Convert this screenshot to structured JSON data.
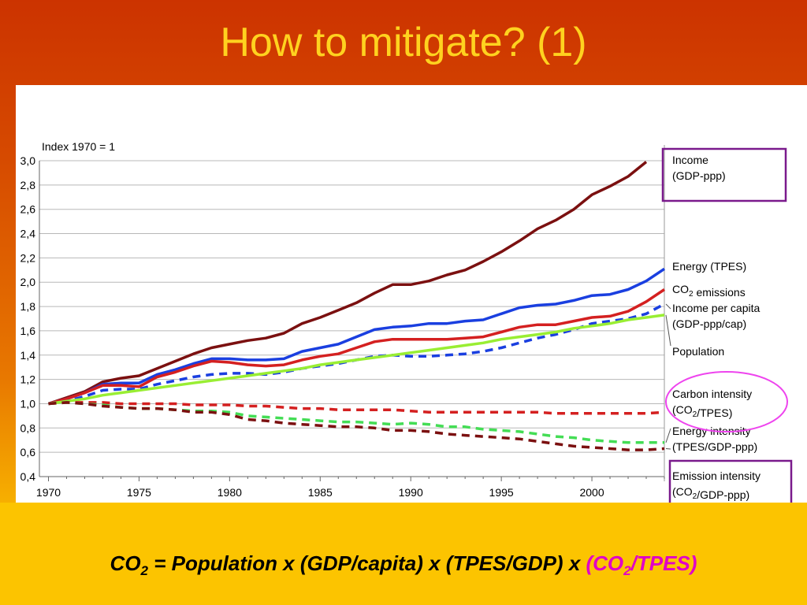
{
  "slide": {
    "title": "How to mitigate? (1)",
    "formula": {
      "co": "CO",
      "sub1": "2",
      "mid": " = Population x (GDP/capita) x (TPES/GDP) x ",
      "hl_open": "(CO",
      "sub2": "2",
      "hl_close": "/TPES)",
      "highlight_color": "#e000c8"
    }
  },
  "chart_data": {
    "type": "line",
    "title": "",
    "ylabel": "Index 1970 = 1",
    "xlabel": "",
    "xlim": [
      1969.5,
      2004
    ],
    "ylim": [
      0.4,
      3.0
    ],
    "x_ticks": [
      "1970",
      "1975",
      "1980",
      "1985",
      "1990",
      "1995",
      "2000"
    ],
    "y_ticks": [
      "3,0",
      "2,8",
      "2,6",
      "2,4",
      "2,2",
      "2,0",
      "1,8",
      "1,6",
      "1,4",
      "1,2",
      "1,0",
      "0,8",
      "0,6",
      "0,4"
    ],
    "grid": true,
    "x": [
      1970,
      1971,
      1972,
      1973,
      1974,
      1975,
      1976,
      1977,
      1978,
      1979,
      1980,
      1981,
      1982,
      1983,
      1984,
      1985,
      1986,
      1987,
      1988,
      1989,
      1990,
      1991,
      1992,
      1993,
      1994,
      1995,
      1996,
      1997,
      1998,
      1999,
      2000,
      2001,
      2002,
      2003,
      2004
    ],
    "series": [
      {
        "name": "Income (GDP-ppp)",
        "label_lines": [
          "Income",
          "(GDP-ppp)"
        ],
        "color": "#7b1010",
        "dash": false,
        "values": [
          1.0,
          1.05,
          1.1,
          1.18,
          1.21,
          1.23,
          1.29,
          1.35,
          1.41,
          1.46,
          1.49,
          1.52,
          1.54,
          1.58,
          1.66,
          1.71,
          1.77,
          1.83,
          1.91,
          1.98,
          1.98,
          2.01,
          2.06,
          2.1,
          2.17,
          2.25,
          2.34,
          2.44,
          2.51,
          2.6,
          2.72,
          2.79,
          2.87,
          2.99,
          null
        ]
      },
      {
        "name": "Energy (TPES)",
        "label_lines": [
          "Energy (TPES)"
        ],
        "color": "#1a3fe0",
        "dash": false,
        "values": [
          1.0,
          1.04,
          1.09,
          1.16,
          1.17,
          1.17,
          1.24,
          1.28,
          1.33,
          1.37,
          1.37,
          1.36,
          1.36,
          1.37,
          1.43,
          1.46,
          1.49,
          1.55,
          1.61,
          1.63,
          1.64,
          1.66,
          1.66,
          1.68,
          1.69,
          1.74,
          1.79,
          1.81,
          1.82,
          1.85,
          1.89,
          1.9,
          1.94,
          2.01,
          2.11
        ]
      },
      {
        "name": "CO2 emissions",
        "label_lines": [
          "CO2 emissions"
        ],
        "color": "#d42020",
        "dash": false,
        "values": [
          1.0,
          1.04,
          1.09,
          1.15,
          1.15,
          1.14,
          1.22,
          1.26,
          1.31,
          1.35,
          1.34,
          1.32,
          1.31,
          1.32,
          1.36,
          1.39,
          1.41,
          1.46,
          1.51,
          1.53,
          1.53,
          1.53,
          1.53,
          1.54,
          1.55,
          1.59,
          1.63,
          1.65,
          1.65,
          1.68,
          1.71,
          1.72,
          1.76,
          1.84,
          1.94
        ]
      },
      {
        "name": "Income per capita (GDP-ppp/cap)",
        "label_lines": [
          "Income per capita",
          "(GDP-ppp/cap)"
        ],
        "color": "#1a3fe0",
        "dash": true,
        "values": [
          1.0,
          1.02,
          1.06,
          1.11,
          1.12,
          1.12,
          1.16,
          1.19,
          1.22,
          1.24,
          1.25,
          1.25,
          1.24,
          1.26,
          1.29,
          1.31,
          1.33,
          1.36,
          1.39,
          1.4,
          1.39,
          1.39,
          1.4,
          1.41,
          1.43,
          1.46,
          1.5,
          1.54,
          1.57,
          1.61,
          1.66,
          1.68,
          1.7,
          1.74,
          1.82
        ]
      },
      {
        "name": "Population",
        "label_lines": [
          "Population"
        ],
        "color": "#99ee33",
        "dash": false,
        "values": [
          1.0,
          1.02,
          1.04,
          1.07,
          1.09,
          1.11,
          1.13,
          1.15,
          1.17,
          1.19,
          1.21,
          1.23,
          1.25,
          1.27,
          1.29,
          1.32,
          1.34,
          1.36,
          1.38,
          1.4,
          1.42,
          1.44,
          1.46,
          1.48,
          1.5,
          1.53,
          1.55,
          1.57,
          1.59,
          1.62,
          1.64,
          1.66,
          1.69,
          1.71,
          1.73
        ]
      },
      {
        "name": "Carbon intensity (CO2/TPES)",
        "label_lines": [
          "Carbon intensity",
          "(CO2/TPES)"
        ],
        "color": "#d42020",
        "dash": true,
        "values": [
          1.0,
          1.01,
          1.01,
          1.01,
          1.0,
          1.0,
          1.0,
          1.0,
          0.99,
          0.99,
          0.99,
          0.98,
          0.98,
          0.97,
          0.96,
          0.96,
          0.95,
          0.95,
          0.95,
          0.95,
          0.94,
          0.93,
          0.93,
          0.93,
          0.93,
          0.93,
          0.93,
          0.93,
          0.92,
          0.92,
          0.92,
          0.92,
          0.92,
          0.92,
          0.93
        ]
      },
      {
        "name": "Energy intensity (TPES/GDP-ppp)",
        "label_lines": [
          "Energy intensity",
          "(TPES/GDP-ppp)"
        ],
        "color": "#44dd55",
        "dash": true,
        "values": [
          1.0,
          1.01,
          1.0,
          0.99,
          0.97,
          0.96,
          0.96,
          0.95,
          0.94,
          0.94,
          0.93,
          0.9,
          0.89,
          0.88,
          0.87,
          0.86,
          0.85,
          0.85,
          0.84,
          0.83,
          0.84,
          0.83,
          0.81,
          0.81,
          0.79,
          0.78,
          0.77,
          0.75,
          0.73,
          0.72,
          0.7,
          0.69,
          0.68,
          0.68,
          0.68
        ]
      },
      {
        "name": "Emission intensity (CO2/GDP-ppp)",
        "label_lines": [
          "Emission intensity",
          "(CO2/GDP-ppp)"
        ],
        "color": "#7b1010",
        "dash": true,
        "values": [
          1.0,
          1.01,
          1.0,
          0.98,
          0.97,
          0.96,
          0.96,
          0.95,
          0.93,
          0.93,
          0.91,
          0.87,
          0.86,
          0.84,
          0.83,
          0.82,
          0.81,
          0.81,
          0.8,
          0.78,
          0.78,
          0.77,
          0.75,
          0.74,
          0.73,
          0.72,
          0.71,
          0.69,
          0.67,
          0.65,
          0.64,
          0.63,
          0.62,
          0.62,
          0.63
        ]
      }
    ],
    "annotations": {
      "highlight_box_color": "#7a1a8c",
      "highlight_ellipse_color": "#ee44ee",
      "boxed_series": [
        "Income (GDP-ppp)",
        "Emission intensity (CO2/GDP-ppp)"
      ],
      "circled_series": [
        "Carbon intensity (CO2/TPES)"
      ]
    }
  }
}
